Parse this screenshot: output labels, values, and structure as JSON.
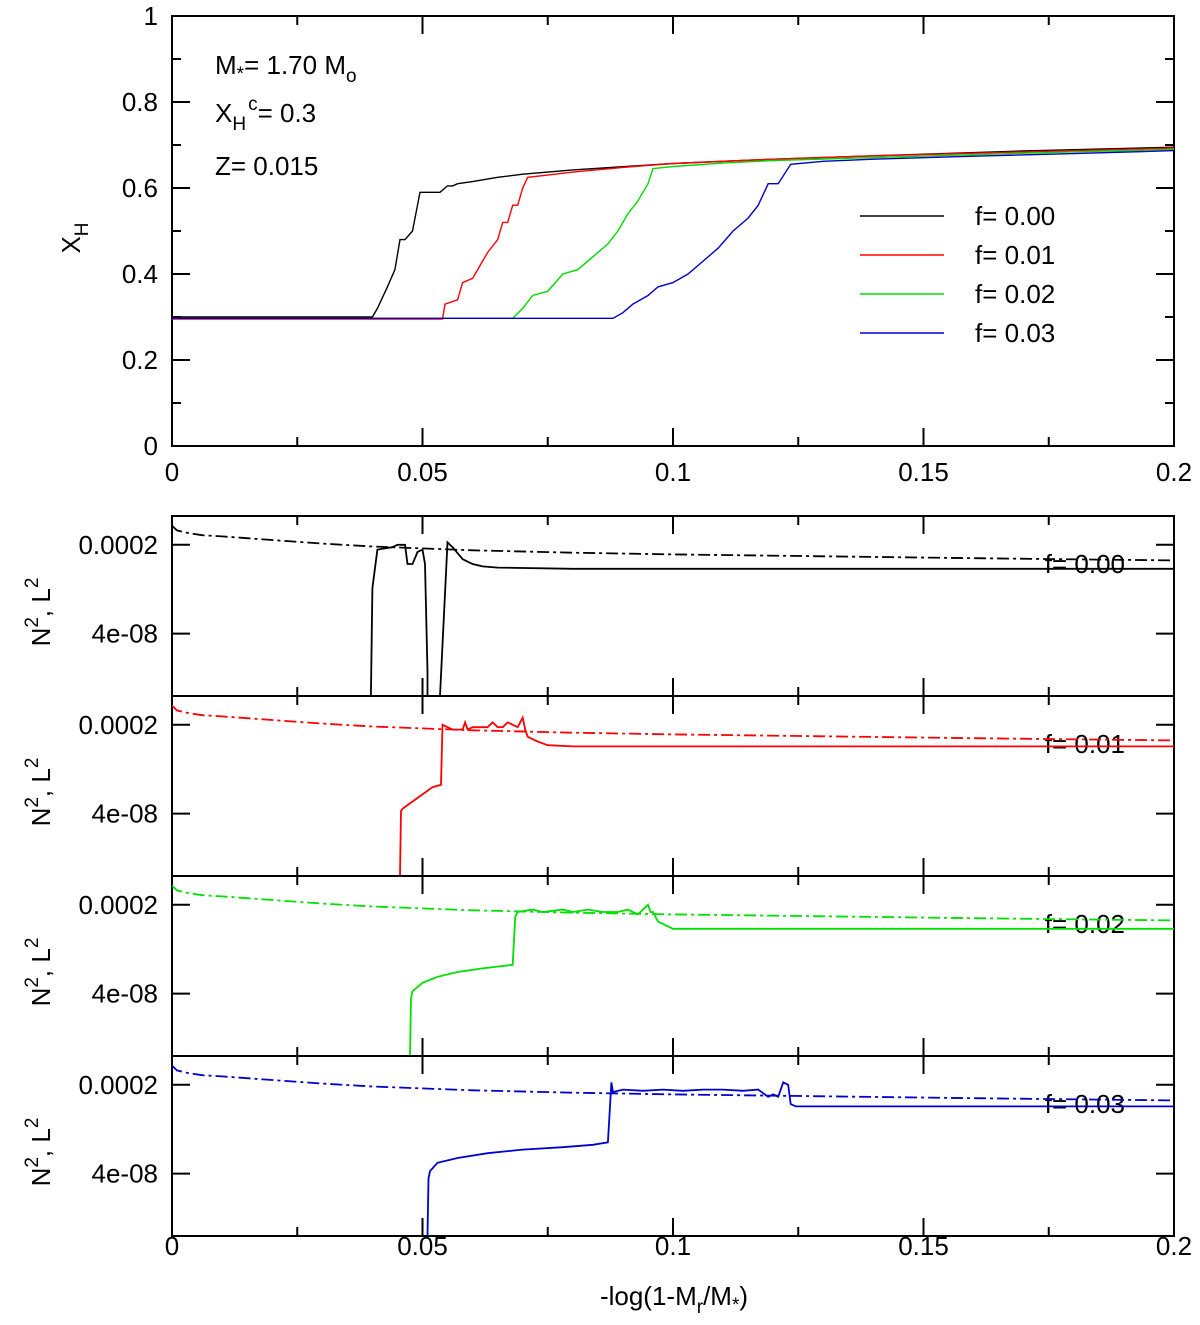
{
  "chart_data": [
    {
      "type": "line",
      "title": "",
      "ylabel": "X",
      "ylabel_sub": "H",
      "xlabel": "",
      "xlim": [
        0,
        0.2
      ],
      "ylim": [
        0,
        1
      ],
      "xticks": [
        "0",
        "0.05",
        "0.1",
        "0.15",
        "0.2"
      ],
      "yticks": [
        "0",
        "0.2",
        "0.4",
        "0.6",
        "0.8",
        "1"
      ],
      "legend_position": "right",
      "annotations": {
        "mass_prefix": "M",
        "mass_star": "*",
        "mass_value": "= 1.70 M",
        "mass_sun": "o",
        "xh_prefix": "X",
        "xh_sub": "H",
        "xh_sup": "c",
        "xh_value": "= 0.3",
        "z_text": "Z= 0.015"
      },
      "series": [
        {
          "name": "f= 0.00",
          "color": "#000000",
          "x": [
            0,
            0.04,
            0.041,
            0.043,
            0.0445,
            0.0455,
            0.0465,
            0.048,
            0.0485,
            0.049,
            0.0495,
            0.0535,
            0.0545,
            0.055,
            0.056,
            0.057,
            0.06,
            0.065,
            0.07,
            0.08,
            0.1,
            0.12,
            0.14,
            0.17,
            0.2
          ],
          "y": [
            0.3,
            0.3,
            0.32,
            0.37,
            0.41,
            0.48,
            0.48,
            0.5,
            0.53,
            0.56,
            0.59,
            0.59,
            0.6,
            0.605,
            0.605,
            0.61,
            0.615,
            0.625,
            0.632,
            0.642,
            0.657,
            0.667,
            0.675,
            0.686,
            0.695
          ]
        },
        {
          "name": "f= 0.01",
          "color": "#ff0000",
          "x": [
            0,
            0.054,
            0.0545,
            0.057,
            0.058,
            0.06,
            0.062,
            0.063,
            0.065,
            0.066,
            0.067,
            0.068,
            0.069,
            0.07,
            0.071,
            0.075,
            0.08,
            0.09,
            0.1,
            0.12,
            0.14,
            0.17,
            0.2
          ],
          "y": [
            0.295,
            0.295,
            0.33,
            0.34,
            0.38,
            0.39,
            0.43,
            0.45,
            0.48,
            0.52,
            0.52,
            0.56,
            0.56,
            0.6,
            0.625,
            0.63,
            0.637,
            0.648,
            0.657,
            0.667,
            0.675,
            0.684,
            0.693
          ]
        },
        {
          "name": "f= 0.02",
          "color": "#00dd00",
          "x": [
            0,
            0.068,
            0.07,
            0.072,
            0.075,
            0.078,
            0.081,
            0.084,
            0.087,
            0.089,
            0.091,
            0.093,
            0.095,
            0.096,
            0.1,
            0.11,
            0.12,
            0.14,
            0.17,
            0.2
          ],
          "y": [
            0.297,
            0.297,
            0.32,
            0.35,
            0.36,
            0.4,
            0.41,
            0.44,
            0.47,
            0.5,
            0.54,
            0.57,
            0.61,
            0.645,
            0.65,
            0.658,
            0.664,
            0.671,
            0.681,
            0.69
          ]
        },
        {
          "name": "f= 0.03",
          "color": "#0000cc",
          "x": [
            0,
            0.088,
            0.09,
            0.092,
            0.095,
            0.097,
            0.1,
            0.103,
            0.106,
            0.109,
            0.112,
            0.115,
            0.117,
            0.119,
            0.121,
            0.1235,
            0.13,
            0.14,
            0.16,
            0.18,
            0.2
          ],
          "y": [
            0.297,
            0.297,
            0.31,
            0.33,
            0.35,
            0.37,
            0.38,
            0.4,
            0.43,
            0.46,
            0.5,
            0.53,
            0.56,
            0.61,
            0.61,
            0.655,
            0.662,
            0.667,
            0.674,
            0.68,
            0.687
          ]
        }
      ]
    },
    {
      "type": "line",
      "title": "",
      "ylabel": "N², L²",
      "xlabel": "",
      "xlim": [
        0,
        0.2
      ],
      "xticks": [
        "0",
        "0.05",
        "0.1",
        "0.15",
        "0.2"
      ],
      "yticks": [
        "0.0002",
        "4e-08"
      ],
      "label": "f= 0.00",
      "color": "#000000",
      "series": [
        {
          "name": "N²",
          "x": [
            0.0397,
            0.04,
            0.041,
            0.044,
            0.045,
            0.0465,
            0.047,
            0.048,
            0.049,
            0.05,
            0.0505,
            0.051,
            0.051,
            0.0535,
            0.055,
            0.056,
            0.058,
            0.06,
            0.062,
            0.065,
            0.08,
            0.12,
            0.16,
            0.2
          ],
          "y": [
            -10,
            -5.5,
            -3.9,
            -3.8,
            -3.7,
            -3.7,
            -4.5,
            -4.5,
            -4.0,
            -3.9,
            -4.5,
            -9,
            -10,
            -10,
            -3.6,
            -3.8,
            -4.3,
            -4.5,
            -4.6,
            -4.65,
            -4.7,
            -4.7,
            -4.7,
            -4.7
          ]
        },
        {
          "name": "L²",
          "x": [
            0,
            0.001,
            0.003,
            0.006,
            0.01,
            0.02,
            0.03,
            0.04,
            0.06,
            0.08,
            0.1,
            0.13,
            0.16,
            0.2
          ],
          "y": [
            -2.9,
            -3.1,
            -3.2,
            -3.3,
            -3.35,
            -3.5,
            -3.65,
            -3.77,
            -3.93,
            -4.03,
            -4.1,
            -4.18,
            -4.26,
            -4.35
          ]
        }
      ]
    },
    {
      "type": "line",
      "title": "",
      "ylabel": "N², L²",
      "xlabel": "",
      "xlim": [
        0,
        0.2
      ],
      "xticks": [
        "0",
        "0.05",
        "0.1",
        "0.15",
        "0.2"
      ],
      "yticks": [
        "0.0002",
        "4e-08"
      ],
      "label": "f= 0.01",
      "color": "#ff0000",
      "series": [
        {
          "name": "N²",
          "x": [
            0.0455,
            0.0457,
            0.046,
            0.05,
            0.052,
            0.0537,
            0.054,
            0.056,
            0.058,
            0.0585,
            0.059,
            0.06,
            0.063,
            0.064,
            0.065,
            0.066,
            0.067,
            0.069,
            0.07,
            0.0705,
            0.071,
            0.073,
            0.075,
            0.08,
            0.12,
            0.16,
            0.2
          ],
          "y": [
            -10,
            -7.3,
            -7.2,
            -6.6,
            -6.3,
            -6.2,
            -3.7,
            -3.9,
            -3.9,
            -3.6,
            -3.9,
            -3.8,
            -3.8,
            -3.6,
            -3.8,
            -3.8,
            -3.6,
            -3.8,
            -3.4,
            -3.9,
            -4.2,
            -4.4,
            -4.55,
            -4.6,
            -4.6,
            -4.6,
            -4.6
          ]
        },
        {
          "name": "L²",
          "x": [
            0,
            0.001,
            0.003,
            0.006,
            0.01,
            0.02,
            0.03,
            0.04,
            0.06,
            0.08,
            0.1,
            0.13,
            0.16,
            0.2
          ],
          "y": [
            -2.9,
            -3.1,
            -3.2,
            -3.3,
            -3.35,
            -3.5,
            -3.65,
            -3.77,
            -3.93,
            -4.03,
            -4.1,
            -4.18,
            -4.26,
            -4.35
          ]
        }
      ]
    },
    {
      "type": "line",
      "title": "",
      "ylabel": "N², L²",
      "xlabel": "",
      "xlim": [
        0,
        0.2
      ],
      "xticks": [
        "0",
        "0.05",
        "0.1",
        "0.15",
        "0.2"
      ],
      "yticks": [
        "0.0002",
        "4e-08"
      ],
      "label": "f= 0.02",
      "color": "#00e000",
      "series": [
        {
          "name": "N²",
          "x": [
            0.0475,
            0.0477,
            0.048,
            0.05,
            0.053,
            0.057,
            0.062,
            0.066,
            0.068,
            0.0685,
            0.069,
            0.072,
            0.074,
            0.078,
            0.08,
            0.083,
            0.086,
            0.089,
            0.091,
            0.093,
            0.095,
            0.0955,
            0.096,
            0.097,
            0.1,
            0.12,
            0.16,
            0.2
          ],
          "y": [
            -10,
            -7.6,
            -7.3,
            -6.95,
            -6.7,
            -6.5,
            -6.35,
            -6.25,
            -6.2,
            -4.2,
            -4.0,
            -3.9,
            -4.0,
            -3.9,
            -4.0,
            -3.9,
            -4.0,
            -4.0,
            -3.9,
            -4.1,
            -3.7,
            -4.0,
            -4.0,
            -4.4,
            -4.7,
            -4.7,
            -4.7,
            -4.7
          ]
        },
        {
          "name": "L²",
          "x": [
            0,
            0.001,
            0.003,
            0.006,
            0.01,
            0.02,
            0.03,
            0.04,
            0.06,
            0.08,
            0.1,
            0.13,
            0.16,
            0.2
          ],
          "y": [
            -2.9,
            -3.1,
            -3.2,
            -3.3,
            -3.35,
            -3.5,
            -3.65,
            -3.77,
            -3.93,
            -4.03,
            -4.1,
            -4.18,
            -4.26,
            -4.35
          ]
        }
      ]
    },
    {
      "type": "line",
      "title": "",
      "ylabel": "N², L²",
      "xlabel": "-log(1-M_r/M_*)",
      "xlim": [
        0,
        0.2
      ],
      "xticks": [
        "0",
        "0.05",
        "0.1",
        "0.15",
        "0.2"
      ],
      "yticks": [
        "0.0002",
        "4e-08"
      ],
      "label": "f= 0.03",
      "color": "#0000cc",
      "series": [
        {
          "name": "N²",
          "x": [
            0.051,
            0.0512,
            0.0515,
            0.053,
            0.057,
            0.063,
            0.07,
            0.078,
            0.084,
            0.087,
            0.0877,
            0.088,
            0.09,
            0.094,
            0.098,
            0.102,
            0.106,
            0.11,
            0.114,
            0.117,
            0.119,
            0.12,
            0.121,
            0.122,
            0.123,
            0.1235,
            0.1245,
            0.13,
            0.16,
            0.2
          ],
          "y": [
            -10,
            -7.6,
            -7.3,
            -6.95,
            -6.75,
            -6.55,
            -6.4,
            -6.3,
            -6.2,
            -6.1,
            -3.6,
            -4.0,
            -3.9,
            -3.95,
            -3.9,
            -3.95,
            -3.9,
            -3.9,
            -3.95,
            -3.9,
            -4.2,
            -4.1,
            -4.2,
            -3.6,
            -3.7,
            -4.5,
            -4.6,
            -4.6,
            -4.6,
            -4.6
          ]
        },
        {
          "name": "L²",
          "x": [
            0,
            0.001,
            0.003,
            0.006,
            0.01,
            0.02,
            0.03,
            0.04,
            0.06,
            0.08,
            0.1,
            0.13,
            0.16,
            0.2
          ],
          "y": [
            -2.9,
            -3.1,
            -3.2,
            -3.3,
            -3.35,
            -3.5,
            -3.65,
            -3.77,
            -3.93,
            -4.03,
            -4.1,
            -4.18,
            -4.26,
            -4.35
          ]
        }
      ]
    }
  ],
  "xlabel_bottom": {
    "prefix": "-log(1-M",
    "sub1": "r",
    "mid": "/M",
    "sub2": "*",
    "suffix": ")"
  },
  "panel_ylabel": {
    "n": "N",
    "sup1": "2",
    "mid": ", L",
    "sup2": "2"
  }
}
